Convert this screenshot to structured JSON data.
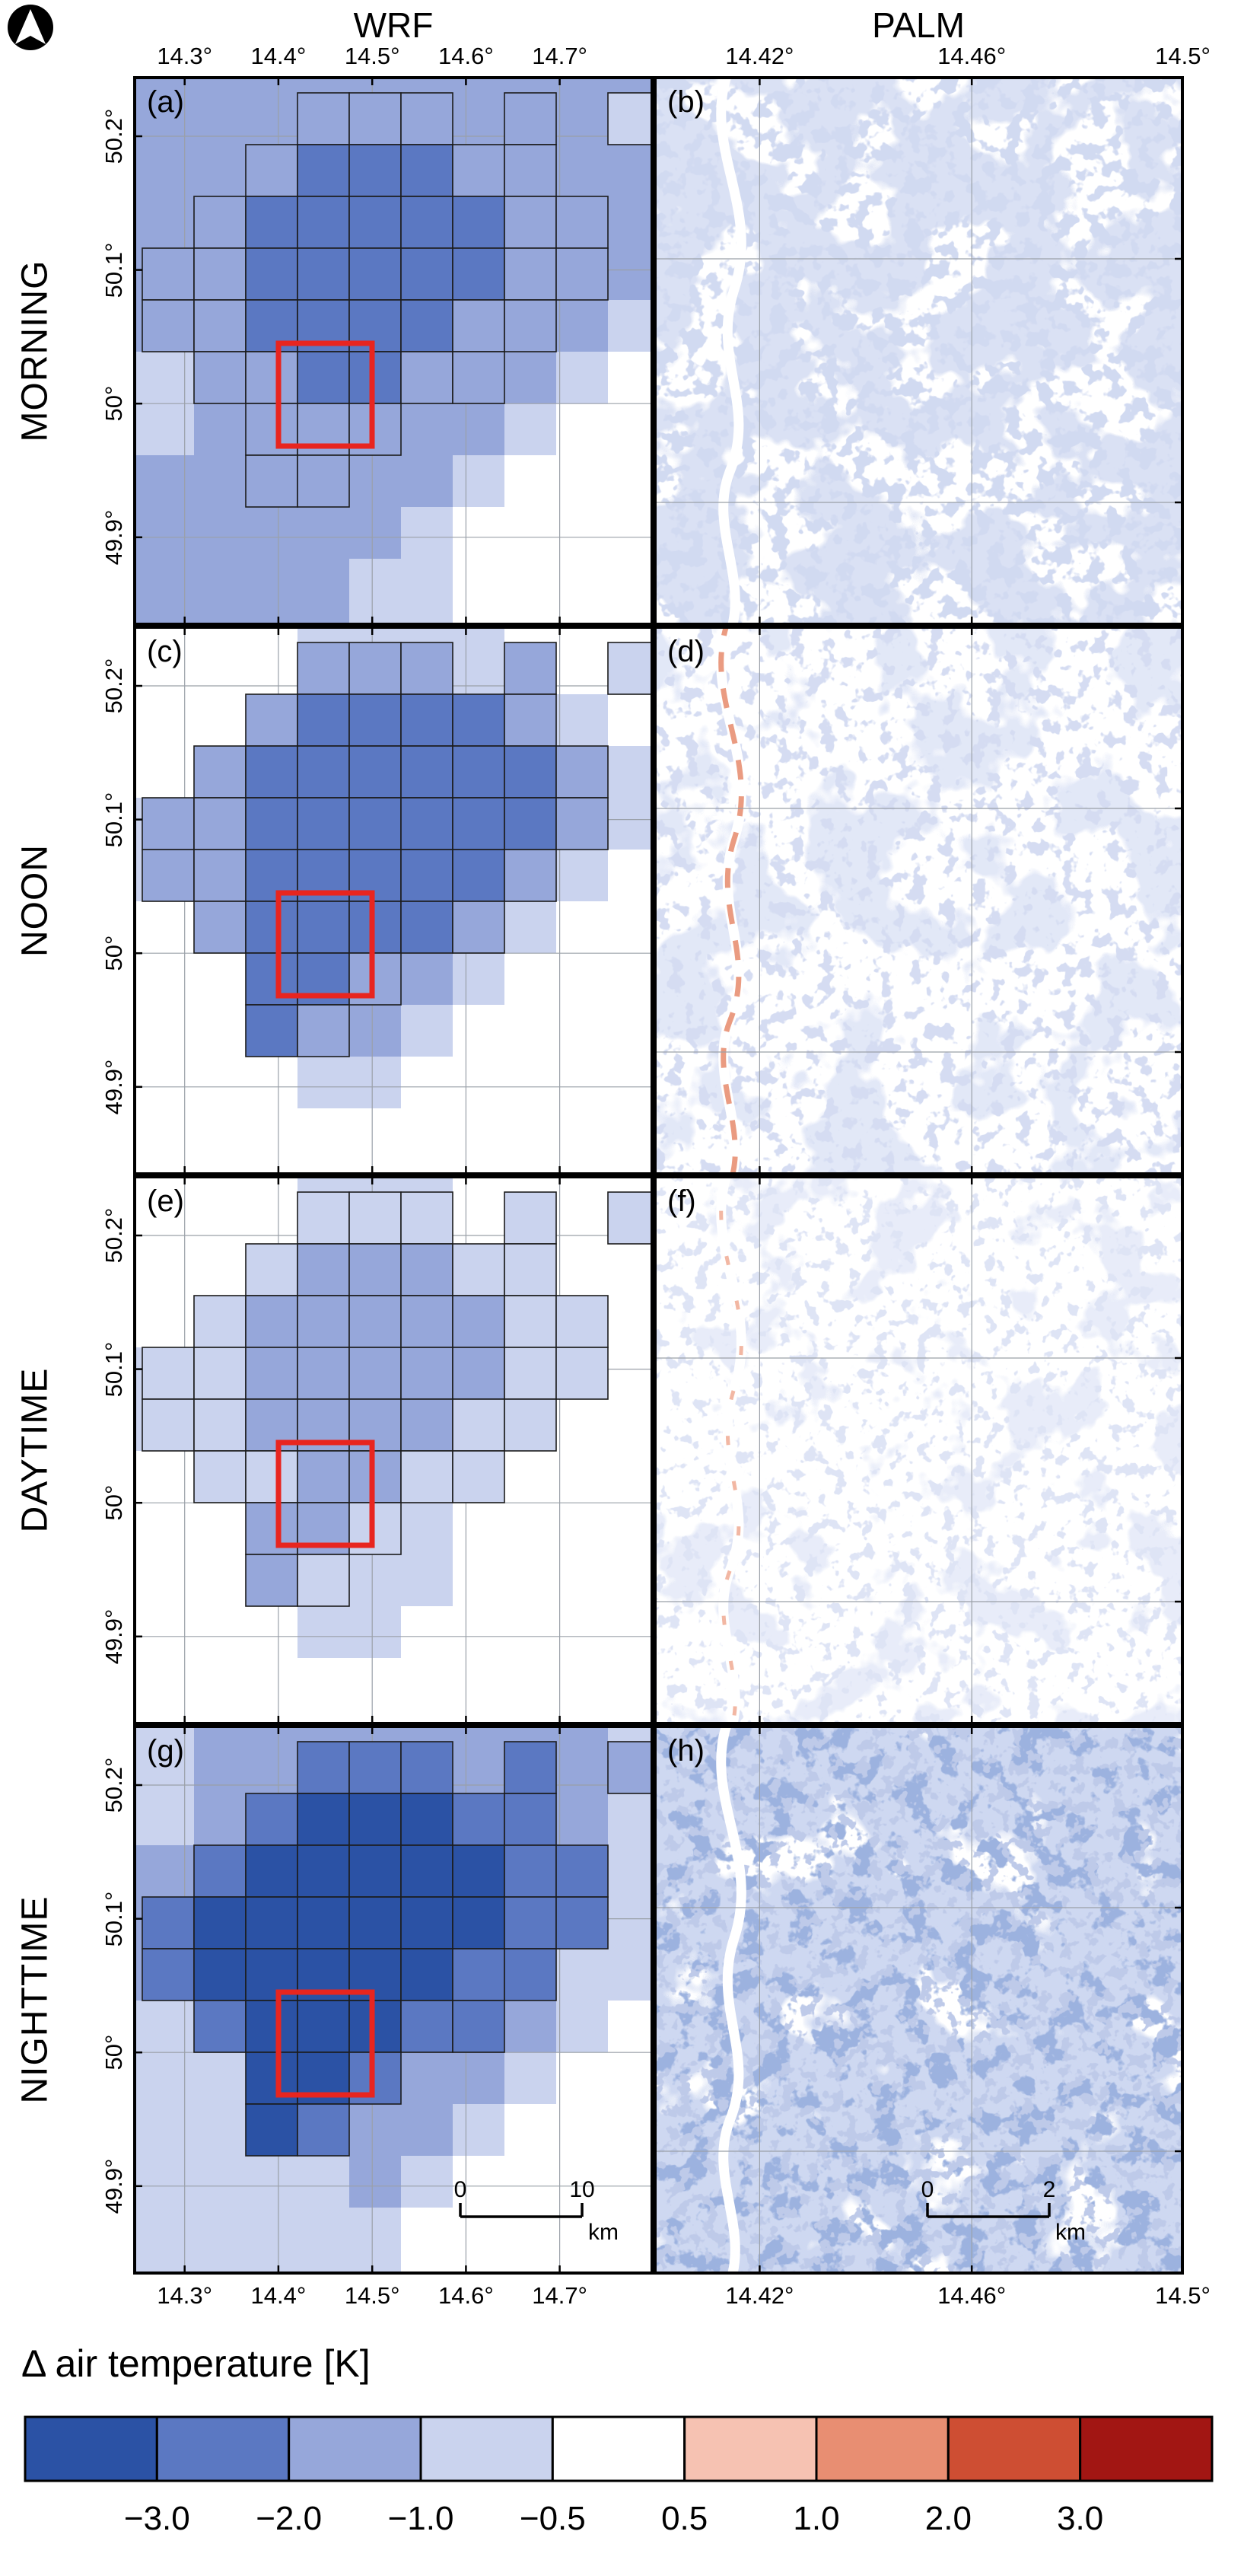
{
  "columns": {
    "wrf": "WRF",
    "palm": "PALM"
  },
  "rows": [
    "MORNING",
    "NOON",
    "DAYTIME",
    "NIGHTTIME"
  ],
  "axes": {
    "wrf_lon_ticks": [
      "14.3°",
      "14.4°",
      "14.5°",
      "14.6°",
      "14.7°"
    ],
    "palm_lon_ticks": [
      "14.42°",
      "14.46°",
      "14.5°"
    ],
    "lat_ticks": [
      "50.2°",
      "50.1°",
      "50°",
      "49.9°"
    ]
  },
  "panels": {
    "letters": [
      "(a)",
      "(b)",
      "(c)",
      "(d)",
      "(e)",
      "(f)",
      "(g)",
      "(h)"
    ]
  },
  "scalebars": {
    "wrf": {
      "zero": "0",
      "max": "10",
      "unit": "km"
    },
    "palm": {
      "zero": "0",
      "max": "2",
      "unit": "km"
    }
  },
  "colorbar": {
    "title": "Δ air temperature [K]",
    "boundary_labels": [
      "−3.0",
      "−2.0",
      "−1.0",
      "−0.5",
      "0.5",
      "1.0",
      "2.0",
      "3.0"
    ],
    "segment_colors": [
      "#2b52a5",
      "#5b78c2",
      "#96a7da",
      "#cad3ee",
      "#ffffff",
      "#f6c2b2",
      "#e88e72",
      "#ce4e33",
      "#a21613"
    ]
  },
  "map_data": {
    "palette": [
      "#ffffff",
      "#cad3ee",
      "#96a7da",
      "#5b78c2",
      "#2b52a5"
    ],
    "red_box_color": "#e8251f",
    "cluster_mask": [
      "00011101010",
      "00111111000",
      "01111111100",
      "11111111100",
      "11111111000",
      "01111110000",
      "00111000000",
      "00110000000",
      "00000000000",
      "00000000000"
    ],
    "wrf_fields": [
      {
        "letter": "(a)",
        "bg": [
          "22222222222",
          "22222222222",
          "22222222221",
          "22222222221",
          "22222222210",
          "12222222100",
          "12222221000",
          "22222210000",
          "22222100000",
          "22221100000"
        ],
        "fg": [
          "00022202010",
          "00233322000",
          "02333332200",
          "22333332200",
          "22333322000",
          "02233220000",
          "00222000000",
          "00220000000",
          "00000000000",
          "00000000000"
        ]
      },
      {
        "letter": "(c)",
        "bg": [
          "00011110000",
          "00111111100",
          "01222221110",
          "11222221110",
          "11222211100",
          "01122211000",
          "00112210000",
          "00112100000",
          "00011000000",
          "00000000000"
        ],
        "fg": [
          "00022202010",
          "00233332000",
          "02333333200",
          "22333333200",
          "22333332000",
          "02333320000",
          "00332000000",
          "00320000000",
          "00000000000",
          "00000000000"
        ]
      },
      {
        "letter": "(e)",
        "bg": [
          "00011100000",
          "00111111000",
          "01111111100",
          "11111111100",
          "11111111000",
          "01111110000",
          "00111100000",
          "00111100000",
          "00011000000",
          "00000000000"
        ],
        "fg": [
          "00011101010",
          "00122211000",
          "01222221100",
          "11222221100",
          "11222211000",
          "01122110000",
          "00221000000",
          "00210000000",
          "00000000000",
          "00000000000"
        ]
      },
      {
        "letter": "(g)",
        "bg": [
          "12222222210",
          "12223222210",
          "22233332210",
          "22333332210",
          "22333322110",
          "12233322100",
          "11223221000",
          "11122210000",
          "11112100000",
          "11111000000"
        ],
        "fg": [
          "00033303020",
          "00344433000",
          "03444443300",
          "34444443300",
          "34444433000",
          "03444330000",
          "00443000000",
          "00430000000",
          "00000000000",
          "00000000000"
        ]
      }
    ]
  }
}
